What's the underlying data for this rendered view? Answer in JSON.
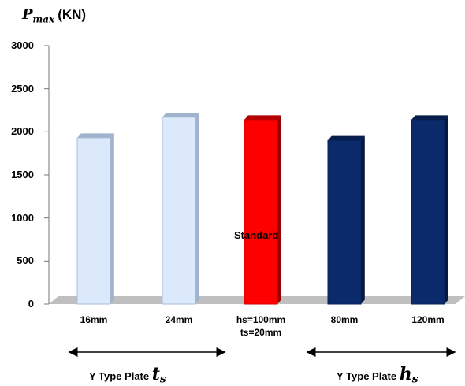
{
  "chart_data": {
    "type": "bar",
    "ylabel": {
      "symbol": "P",
      "subscript": "max",
      "unit": "(KN)"
    },
    "ylim": [
      0,
      3000
    ],
    "yticks": [
      "0",
      "500",
      "1000",
      "1500",
      "2000",
      "2500",
      "3000"
    ],
    "categories": [
      "16mm",
      "24mm",
      "hs=100mm\nts=20mm",
      "80mm",
      "120mm"
    ],
    "values": [
      1930,
      2170,
      2140,
      1900,
      2140
    ],
    "bar_colors": [
      "#dce9fa",
      "#dce9fa",
      "#ff0000",
      "#0a2a6b",
      "#0a2a6b"
    ],
    "annotations": [
      {
        "text": "Standard",
        "category_index": 2,
        "y": 850
      }
    ],
    "groups": [
      {
        "text": "Y Type Plate ",
        "symbol": "t",
        "subscript": "s",
        "spans": [
          0,
          1
        ]
      },
      {
        "text": "Y Type Plate ",
        "symbol": "h",
        "subscript": "s",
        "spans": [
          3,
          4
        ]
      }
    ],
    "grid": false,
    "legend": "none"
  }
}
